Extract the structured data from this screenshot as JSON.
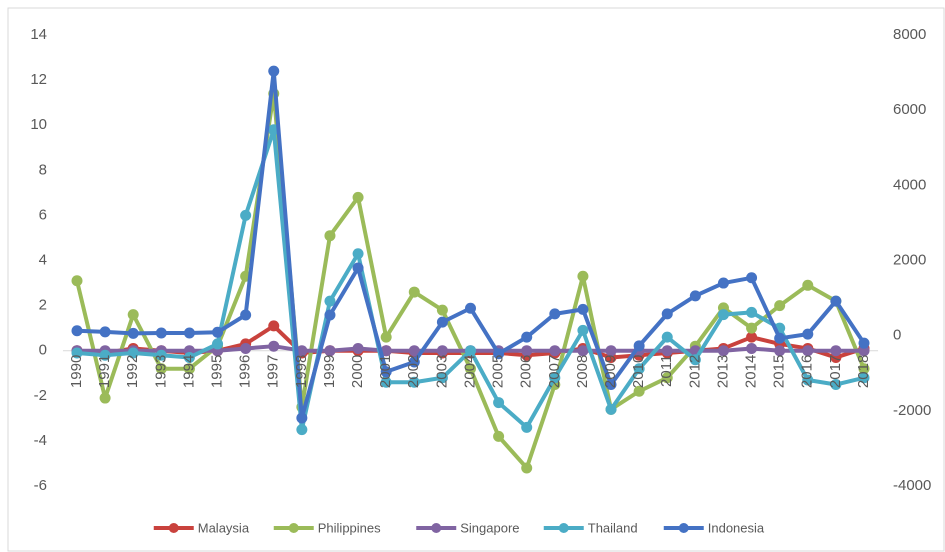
{
  "chart_data": {
    "type": "line",
    "categories": [
      "1990",
      "1991",
      "1992",
      "1993",
      "1994",
      "1995",
      "1996",
      "1997",
      "1998",
      "1999",
      "2000",
      "2001",
      "2002",
      "2003",
      "2004",
      "2005",
      "2006",
      "2007",
      "2008",
      "2009",
      "2010",
      "2011",
      "2012",
      "2013",
      "2014",
      "2015",
      "2016",
      "2017",
      "2018"
    ],
    "ylim": [
      -6,
      14
    ],
    "yticks": [
      -6,
      -4,
      -2,
      0,
      2,
      4,
      6,
      8,
      10,
      12,
      14
    ],
    "y2lim": [
      -4000,
      8000
    ],
    "y2ticks": [
      -4000,
      -2000,
      0,
      2000,
      4000,
      6000,
      8000
    ],
    "legend": "bottom",
    "series": [
      {
        "name": "Malaysia",
        "color": "#c9423d",
        "values": [
          0,
          -0.1,
          0.1,
          0,
          -0.1,
          0,
          0.3,
          1.1,
          -0.1,
          0,
          0,
          0,
          -0.1,
          -0.1,
          -0.1,
          -0.1,
          -0.2,
          -0.1,
          0.1,
          -0.3,
          -0.2,
          -0.1,
          0,
          0.1,
          0.6,
          0.3,
          0.1,
          -0.3,
          0.1
        ]
      },
      {
        "name": "Philippines",
        "color": "#9bbb59",
        "values": [
          3.1,
          -2.1,
          1.6,
          -0.8,
          -0.8,
          0.2,
          3.3,
          11.4,
          -2.5,
          5.1,
          6.8,
          0.6,
          2.6,
          1.8,
          -0.8,
          -3.8,
          -5.2,
          -1.5,
          3.3,
          -2.6,
          -1.8,
          -1.2,
          0.2,
          1.9,
          1.0,
          2.0,
          2.9,
          2.2,
          -0.8
        ]
      },
      {
        "name": "Singapore",
        "color": "#8064a2",
        "values": [
          0,
          0,
          0,
          0,
          0,
          0,
          0.1,
          0.2,
          0,
          0,
          0.1,
          0,
          0,
          0,
          0,
          0,
          0,
          0,
          0,
          0,
          0,
          0,
          0,
          0,
          0.1,
          0,
          0,
          0,
          0
        ]
      },
      {
        "name": "Thailand",
        "color": "#4bacc6",
        "values": [
          -0.1,
          -0.2,
          -0.1,
          -0.2,
          -0.3,
          0.3,
          6.0,
          9.8,
          -3.5,
          2.2,
          4.3,
          -1.4,
          -1.4,
          -1.2,
          0,
          -2.3,
          -3.4,
          -1.2,
          0.9,
          -2.6,
          -0.8,
          0.6,
          -0.4,
          1.6,
          1.7,
          1.0,
          -1.3,
          -1.5,
          -1.2
        ]
      },
      {
        "name": "Indonesia",
        "color": "#4472c4",
        "axis": "y2",
        "values": [
          130,
          100,
          60,
          70,
          70,
          90,
          550,
          7040,
          -2190,
          550,
          1800,
          -960,
          -700,
          360,
          730,
          -480,
          -40,
          580,
          700,
          -1300,
          -270,
          580,
          1060,
          1400,
          1540,
          -70,
          40,
          920,
          -200
        ]
      }
    ]
  }
}
